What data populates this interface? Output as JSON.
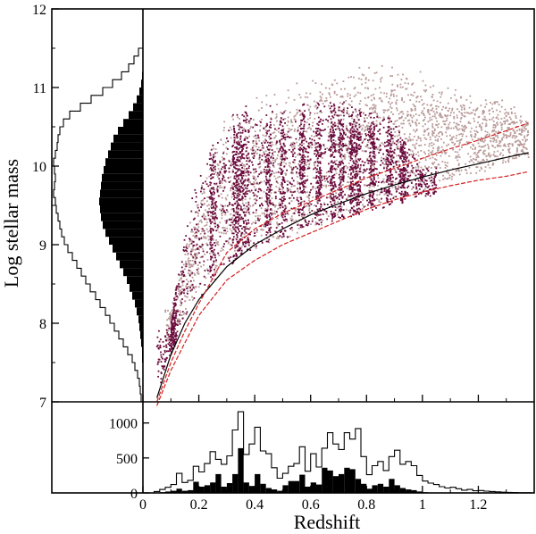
{
  "chart_data": [
    {
      "type": "scatter",
      "panel": "main",
      "xlabel": "",
      "ylabel": "Log stellar mass",
      "xlim": [
        0,
        1.4
      ],
      "ylim": [
        7,
        12
      ],
      "yticks": [
        "7",
        "8",
        "9",
        "10",
        "11",
        "12"
      ],
      "grid": false,
      "colors": {
        "sample_a": "#6b0a3c",
        "sample_b": "#b89a98",
        "limit_mid": "#000000",
        "limit_band": "#d22020"
      },
      "series": [
        {
          "kind": "scatter-cloud",
          "color": "#b89a98",
          "bounds_x": [
            0.08,
            1.38
          ],
          "lower_y": [
            [
              0.05,
              7.2
            ],
            [
              0.1,
              7.8
            ],
            [
              0.2,
              8.4
            ],
            [
              0.3,
              8.75
            ],
            [
              0.45,
              9.0
            ],
            [
              0.6,
              9.2
            ],
            [
              0.8,
              9.45
            ],
            [
              1.0,
              9.7
            ],
            [
              1.2,
              9.9
            ],
            [
              1.38,
              10.1
            ]
          ],
          "upper_y": [
            [
              0.1,
              8.2
            ],
            [
              0.2,
              9.8
            ],
            [
              0.3,
              10.8
            ],
            [
              0.5,
              11.0
            ],
            [
              0.7,
              11.3
            ],
            [
              0.9,
              11.4
            ],
            [
              1.1,
              11.0
            ],
            [
              1.3,
              10.9
            ],
            [
              1.38,
              10.6
            ]
          ]
        },
        {
          "kind": "scatter-cloud",
          "color": "#6b0a3c",
          "bounds_x": [
            0.05,
            1.05
          ],
          "lower_y": [
            [
              0.05,
              7.1
            ],
            [
              0.1,
              7.6
            ],
            [
              0.2,
              8.3
            ],
            [
              0.3,
              8.7
            ],
            [
              0.4,
              8.95
            ],
            [
              0.6,
              9.2
            ],
            [
              0.8,
              9.4
            ],
            [
              1.0,
              9.6
            ]
          ],
          "upper_y": [
            [
              0.1,
              8.0
            ],
            [
              0.15,
              9.5
            ],
            [
              0.25,
              10.4
            ],
            [
              0.35,
              10.8
            ],
            [
              0.5,
              10.8
            ],
            [
              0.7,
              10.9
            ],
            [
              0.9,
              10.6
            ],
            [
              1.0,
              10.0
            ]
          ],
          "strips_x": [
            0.11,
            0.25,
            0.33,
            0.35,
            0.37,
            0.45,
            0.5,
            0.57,
            0.63,
            0.68,
            0.71,
            0.75,
            0.77,
            0.82,
            0.88,
            0.93
          ]
        },
        {
          "kind": "curve",
          "color": "#000000",
          "points": [
            [
              0.05,
              7.05
            ],
            [
              0.1,
              7.6
            ],
            [
              0.15,
              8.0
            ],
            [
              0.2,
              8.3
            ],
            [
              0.3,
              8.72
            ],
            [
              0.4,
              9.0
            ],
            [
              0.5,
              9.2
            ],
            [
              0.6,
              9.38
            ],
            [
              0.7,
              9.52
            ],
            [
              0.8,
              9.65
            ],
            [
              0.9,
              9.76
            ],
            [
              1.0,
              9.86
            ],
            [
              1.1,
              9.95
            ],
            [
              1.2,
              10.03
            ],
            [
              1.3,
              10.11
            ],
            [
              1.38,
              10.17
            ]
          ]
        },
        {
          "kind": "curve",
          "color": "#d22020",
          "points": [
            [
              0.05,
              7.0
            ],
            [
              0.1,
              7.5
            ],
            [
              0.15,
              7.9
            ],
            [
              0.2,
              8.25
            ],
            [
              0.3,
              8.9
            ],
            [
              0.4,
              9.2
            ],
            [
              0.5,
              9.4
            ],
            [
              0.6,
              9.55
            ],
            [
              0.7,
              9.7
            ],
            [
              0.8,
              9.85
            ],
            [
              0.9,
              9.97
            ],
            [
              1.0,
              10.1
            ],
            [
              1.1,
              10.22
            ],
            [
              1.2,
              10.33
            ],
            [
              1.3,
              10.45
            ],
            [
              1.38,
              10.55
            ]
          ]
        },
        {
          "kind": "curve",
          "color": "#d22020",
          "points": [
            [
              0.05,
              6.95
            ],
            [
              0.1,
              7.4
            ],
            [
              0.2,
              8.1
            ],
            [
              0.3,
              8.55
            ],
            [
              0.4,
              8.8
            ],
            [
              0.5,
              9.0
            ],
            [
              0.6,
              9.15
            ],
            [
              0.7,
              9.3
            ],
            [
              0.8,
              9.45
            ],
            [
              0.9,
              9.57
            ],
            [
              1.0,
              9.67
            ],
            [
              1.1,
              9.75
            ],
            [
              1.2,
              9.82
            ],
            [
              1.3,
              9.87
            ],
            [
              1.38,
              9.93
            ]
          ]
        }
      ]
    },
    {
      "type": "histogram",
      "panel": "left-mass-histogram",
      "orientation": "horizontal",
      "bin_edges_y": [
        7.0,
        7.1,
        7.2,
        7.3,
        7.4,
        7.5,
        7.6,
        7.7,
        7.8,
        7.9,
        8.0,
        8.1,
        8.2,
        8.3,
        8.4,
        8.5,
        8.6,
        8.7,
        8.8,
        8.9,
        9.0,
        9.1,
        9.2,
        9.3,
        9.4,
        9.5,
        9.6,
        9.7,
        9.8,
        9.9,
        10.0,
        10.1,
        10.2,
        10.3,
        10.4,
        10.5,
        10.6,
        10.7,
        10.8,
        10.9,
        11.0,
        11.1,
        11.2,
        11.3,
        11.4,
        11.5
      ],
      "series": [
        {
          "style": "outline",
          "relative_counts": [
            0.02,
            0.03,
            0.04,
            0.06,
            0.09,
            0.12,
            0.17,
            0.22,
            0.27,
            0.32,
            0.37,
            0.42,
            0.48,
            0.53,
            0.59,
            0.64,
            0.69,
            0.74,
            0.79,
            0.84,
            0.88,
            0.91,
            0.93,
            0.95,
            0.97,
            0.98,
            1.0,
            0.99,
            0.98,
            0.99,
            1.0,
            0.98,
            0.96,
            0.95,
            0.93,
            0.89,
            0.82,
            0.7,
            0.58,
            0.45,
            0.34,
            0.24,
            0.16,
            0.1,
            0.05
          ]
        },
        {
          "style": "filled",
          "relative_counts": [
            0.0,
            0.0,
            0.0,
            0.0,
            0.0,
            0.01,
            0.01,
            0.02,
            0.03,
            0.04,
            0.05,
            0.07,
            0.09,
            0.12,
            0.15,
            0.18,
            0.22,
            0.26,
            0.3,
            0.34,
            0.38,
            0.42,
            0.45,
            0.47,
            0.48,
            0.49,
            0.48,
            0.47,
            0.46,
            0.44,
            0.42,
            0.39,
            0.36,
            0.33,
            0.28,
            0.22,
            0.16,
            0.11,
            0.07,
            0.04,
            0.02,
            0.01,
            0.0,
            0.0,
            0.0
          ]
        }
      ]
    },
    {
      "type": "histogram",
      "panel": "bottom-redshift-histogram",
      "xlabel": "Redshift",
      "ylabel": "",
      "xlim": [
        0,
        1.4
      ],
      "ylim": [
        0,
        1200
      ],
      "xticks": [
        "0",
        "0.2",
        "0.4",
        "0.6",
        "0.8",
        "1",
        "1.2"
      ],
      "yticks": [
        "0",
        "500",
        "1000"
      ],
      "bin_edges_x": [
        0.0,
        0.02,
        0.04,
        0.06,
        0.08,
        0.1,
        0.12,
        0.14,
        0.16,
        0.18,
        0.2,
        0.22,
        0.24,
        0.26,
        0.28,
        0.3,
        0.32,
        0.34,
        0.36,
        0.38,
        0.4,
        0.42,
        0.44,
        0.46,
        0.48,
        0.5,
        0.52,
        0.54,
        0.56,
        0.58,
        0.6,
        0.62,
        0.64,
        0.66,
        0.68,
        0.7,
        0.72,
        0.74,
        0.76,
        0.78,
        0.8,
        0.82,
        0.84,
        0.86,
        0.88,
        0.9,
        0.92,
        0.94,
        0.96,
        0.98,
        1.0,
        1.02,
        1.04,
        1.06,
        1.08,
        1.1,
        1.12,
        1.14,
        1.16,
        1.18,
        1.2,
        1.22,
        1.24,
        1.26,
        1.28,
        1.3,
        1.32,
        1.34,
        1.36,
        1.38
      ],
      "series": [
        {
          "style": "outline",
          "values": [
            0,
            0,
            20,
            50,
            80,
            120,
            280,
            150,
            180,
            380,
            300,
            420,
            590,
            480,
            410,
            530,
            900,
            1160,
            550,
            700,
            940,
            600,
            560,
            360,
            210,
            280,
            380,
            420,
            660,
            310,
            560,
            370,
            640,
            860,
            700,
            620,
            860,
            770,
            920,
            520,
            260,
            390,
            450,
            320,
            520,
            610,
            410,
            450,
            390,
            250,
            170,
            140,
            120,
            90,
            70,
            80,
            60,
            40,
            50,
            30,
            35,
            25,
            20,
            15,
            10,
            8,
            5,
            3,
            2
          ]
        },
        {
          "style": "filled",
          "values": [
            0,
            0,
            5,
            10,
            20,
            30,
            60,
            30,
            40,
            160,
            90,
            110,
            150,
            270,
            90,
            140,
            270,
            640,
            150,
            100,
            270,
            130,
            70,
            50,
            30,
            110,
            170,
            170,
            260,
            90,
            150,
            120,
            360,
            320,
            240,
            270,
            360,
            340,
            200,
            130,
            60,
            110,
            130,
            90,
            200,
            110,
            70,
            50,
            40,
            20,
            10,
            5,
            3,
            2,
            1,
            1,
            0,
            0,
            0,
            0,
            0,
            0,
            0,
            0,
            0,
            0,
            0,
            0,
            0
          ]
        }
      ]
    }
  ]
}
